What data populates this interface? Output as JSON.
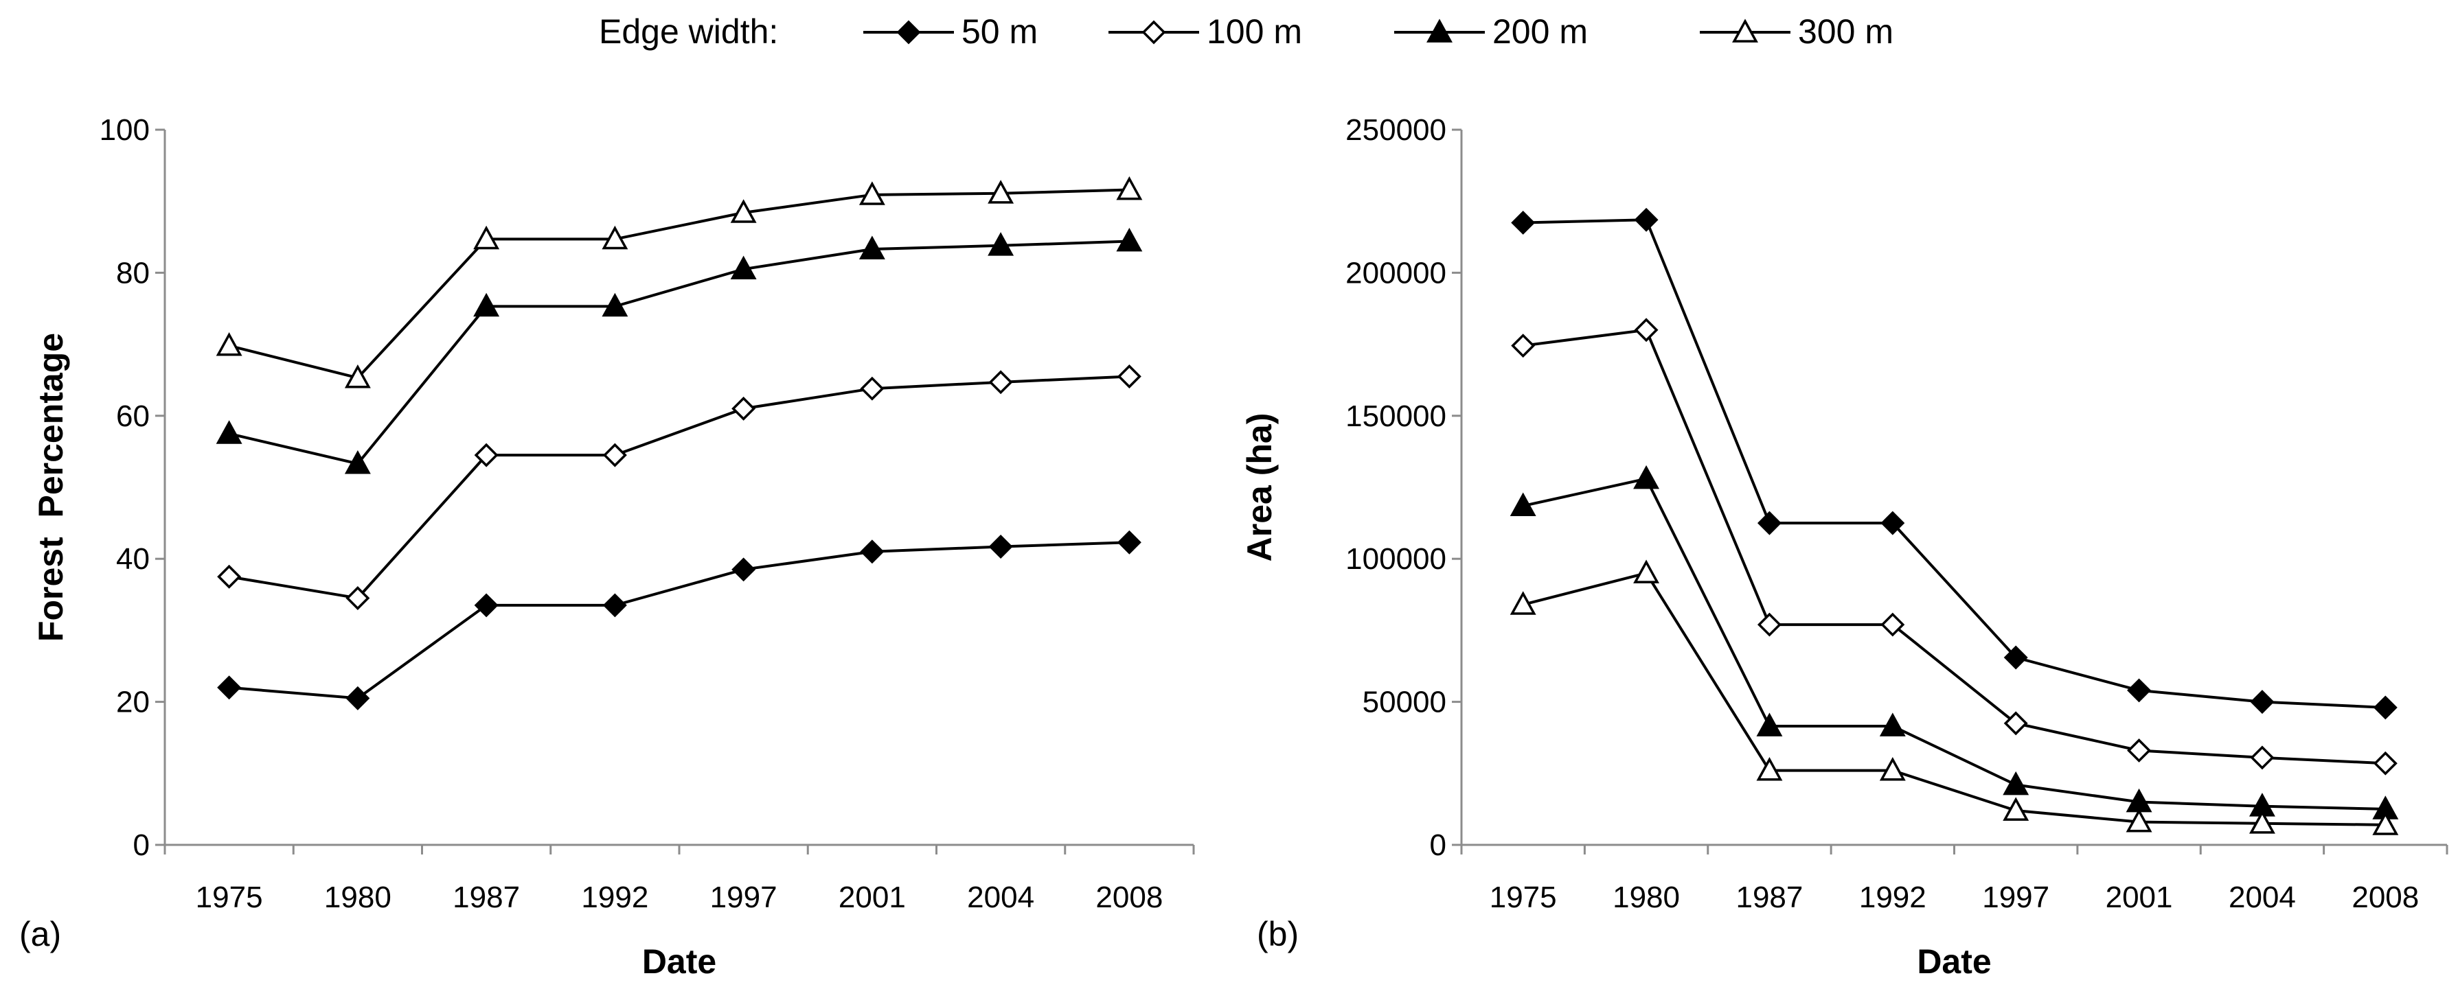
{
  "legend": {
    "title": "Edge width:",
    "entries": [
      {
        "label": "50 m",
        "marker": "filled-diamond"
      },
      {
        "label": "100 m",
        "marker": "open-diamond"
      },
      {
        "label": "200 m",
        "marker": "filled-triangle"
      },
      {
        "label": "300 m",
        "marker": "open-triangle"
      }
    ]
  },
  "chart_data": [
    {
      "type": "line",
      "panel_label": "(a)",
      "categories": [
        "1975",
        "1980",
        "1987",
        "1992",
        "1997",
        "2001",
        "2004",
        "2008"
      ],
      "xlabel": "Date",
      "ylabel": "Forest  Percentage",
      "ylim": [
        0,
        100
      ],
      "yticks": [
        0,
        20,
        40,
        60,
        80,
        100
      ],
      "ytick_labels": [
        "0",
        "20",
        "40",
        "60",
        "80",
        "100"
      ],
      "grid": false,
      "series": [
        {
          "name": "50 m",
          "marker": "filled-diamond",
          "values": [
            22,
            20.5,
            33.5,
            33.5,
            38.5,
            41,
            41.7,
            42.3
          ]
        },
        {
          "name": "100 m",
          "marker": "open-diamond",
          "values": [
            37.5,
            34.5,
            54.5,
            54.5,
            61,
            63.8,
            64.7,
            65.5
          ]
        },
        {
          "name": "200 m",
          "marker": "filled-triangle",
          "values": [
            57.5,
            53.3,
            75.3,
            75.3,
            80.5,
            83.3,
            83.8,
            84.4
          ]
        },
        {
          "name": "300 m",
          "marker": "open-triangle",
          "values": [
            69.8,
            65.3,
            84.7,
            84.7,
            88.4,
            90.9,
            91.1,
            91.6
          ]
        }
      ]
    },
    {
      "type": "line",
      "panel_label": "(b)",
      "categories": [
        "1975",
        "1980",
        "1987",
        "1992",
        "1997",
        "2001",
        "2004",
        "2008"
      ],
      "xlabel": "Date",
      "ylabel": "Area (ha)",
      "ylim": [
        0,
        250000
      ],
      "yticks": [
        0,
        50000,
        100000,
        150000,
        200000,
        250000
      ],
      "ytick_labels": [
        "0",
        "50000",
        "100000",
        "150000",
        "200000",
        "250000"
      ],
      "grid": false,
      "series": [
        {
          "name": "50 m",
          "marker": "filled-diamond",
          "values": [
            217500,
            218500,
            112500,
            112500,
            65500,
            54000,
            50000,
            48000
          ]
        },
        {
          "name": "100 m",
          "marker": "open-diamond",
          "values": [
            174500,
            180000,
            77000,
            77000,
            42500,
            33000,
            30500,
            28500
          ]
        },
        {
          "name": "200 m",
          "marker": "filled-triangle",
          "values": [
            118500,
            128000,
            41500,
            41500,
            21000,
            15000,
            13500,
            12500
          ]
        },
        {
          "name": "300 m",
          "marker": "open-triangle",
          "values": [
            84000,
            95000,
            26000,
            26000,
            12000,
            8000,
            7500,
            7000
          ]
        }
      ]
    }
  ]
}
